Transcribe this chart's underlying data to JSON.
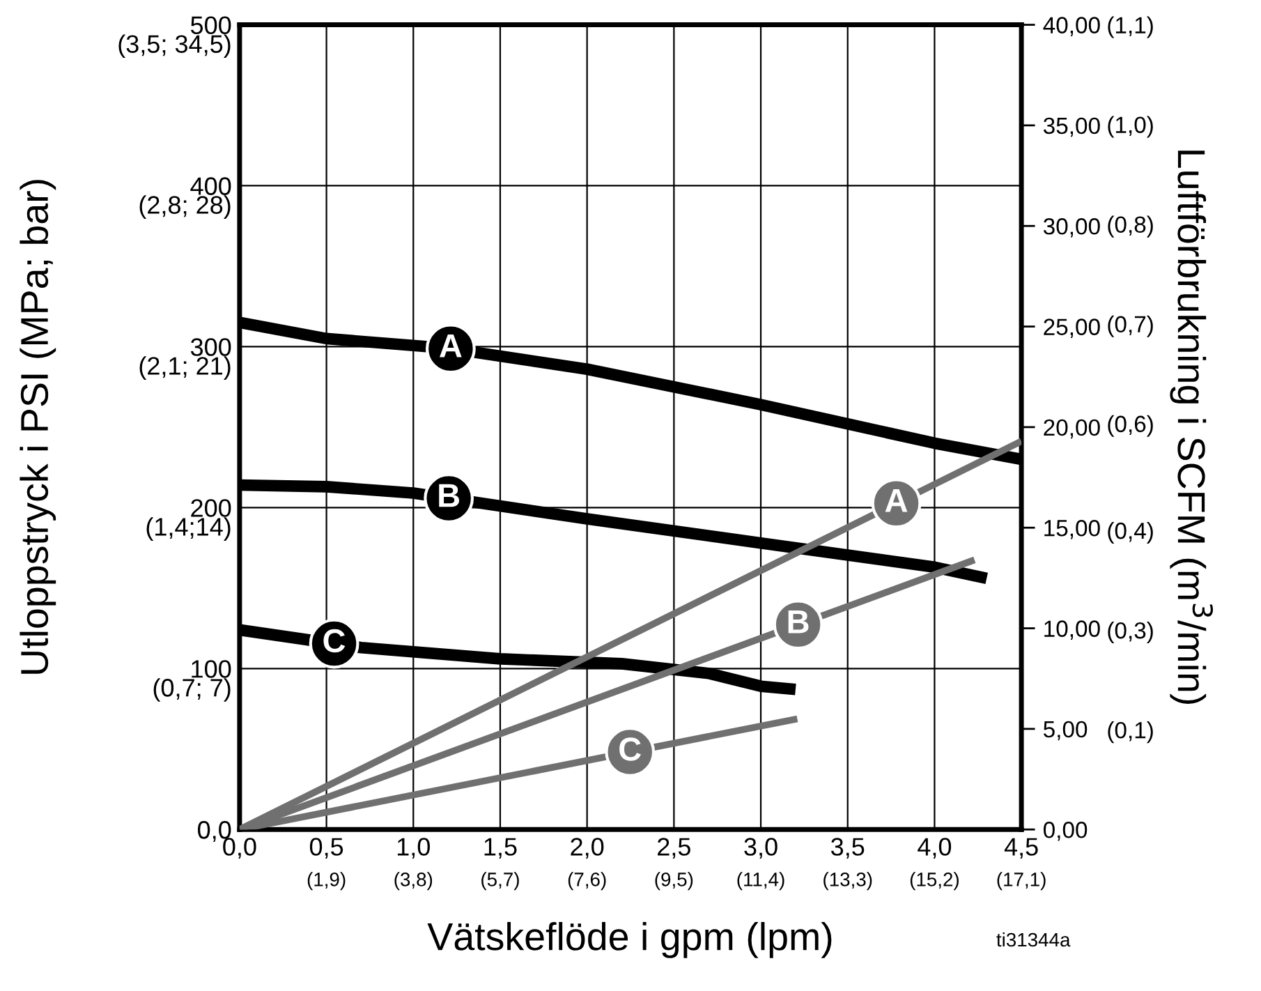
{
  "chart_data": {
    "type": "line",
    "xlabel": "Vätskeflöde i gpm (lpm)",
    "ylabel": "Utloppstryck i PSI (MPa; bar)",
    "y2label": "Luftförbrukning i SCFM (m$^{3}$/min)",
    "xlim": [
      0,
      4.5
    ],
    "ylim": [
      0,
      500
    ],
    "y2lim": [
      0,
      40
    ],
    "xticks": [
      {
        "value": 0,
        "label": "0,0"
      },
      {
        "value": 0.5,
        "label": "0,5"
      },
      {
        "value": 1,
        "label": "1,0"
      },
      {
        "value": 1.5,
        "label": "1,5"
      },
      {
        "value": 2,
        "label": "2,0"
      },
      {
        "value": 2.5,
        "label": "2,5"
      },
      {
        "value": 3,
        "label": "3,0"
      },
      {
        "value": 3.5,
        "label": "3,5"
      },
      {
        "value": 4,
        "label": "4,0"
      },
      {
        "value": 4.5,
        "label": "4,5"
      }
    ],
    "x2lim": [
      0,
      17.1
    ],
    "x2ticks": [
      {
        "value": 1.9,
        "label": "(1,9)"
      },
      {
        "value": 3.8,
        "label": "(3,8)"
      },
      {
        "value": 5.7,
        "label": "(5,7)"
      },
      {
        "value": 7.6,
        "label": "(7,6)"
      },
      {
        "value": 9.5,
        "label": "(9,5)"
      },
      {
        "value": 11.4,
        "label": "(11,4)"
      },
      {
        "value": 13.3,
        "label": "(13,3)"
      },
      {
        "value": 15.2,
        "label": "(15,2)"
      },
      {
        "value": 17.1,
        "label": "(17,1)"
      }
    ],
    "yticks": [
      {
        "value": 0,
        "label": "0,0"
      },
      100,
      200,
      300,
      400,
      500
    ],
    "y2ticks": [
      {
        "value": 0,
        "label": "0,00"
      },
      {
        "value": 5,
        "label": "5,00"
      },
      {
        "value": 10,
        "label": "10,00"
      },
      {
        "value": 15,
        "label": "15,00"
      },
      {
        "value": 20,
        "label": "20,00"
      },
      {
        "value": 25,
        "label": "25,00"
      },
      {
        "value": 30,
        "label": "30,00"
      },
      {
        "value": 35,
        "label": "35,00"
      },
      {
        "value": 40,
        "label": "40,00"
      }
    ],
    "grid": true,
    "legend": false,
    "marker": "none",
    "line_style": "solid",
    "series": [
      {
        "name": "A",
        "color": "#000000",
        "x": [
          0,
          0.5,
          1.2,
          2,
          3,
          4,
          4.5
        ],
        "values": [
          315,
          305,
          299,
          286,
          264,
          240,
          230
        ]
      },
      {
        "name": "B",
        "color": "#000000",
        "x": [
          0,
          0.5,
          1,
          2,
          3,
          4,
          4.3
        ],
        "values": [
          214,
          213,
          209,
          193,
          178,
          163,
          156
        ]
      },
      {
        "name": "C",
        "color": "#000000",
        "x": [
          0,
          0.7,
          1.5,
          2.2,
          2.7,
          3,
          3.2
        ],
        "values": [
          124,
          113,
          106,
          103,
          97,
          89,
          87
        ]
      },
      {
        "name": "A",
        "color": "#707070",
        "axis": "y2",
        "x": [
          0,
          4.5
        ],
        "values": [
          0,
          19.3
        ]
      },
      {
        "name": "B",
        "color": "#707070",
        "axis": "y2",
        "x": [
          0,
          4.23
        ],
        "values": [
          0,
          13.4
        ]
      },
      {
        "name": "C",
        "color": "#707070",
        "axis": "y2",
        "x": [
          0,
          3.21
        ],
        "values": [
          0,
          5.5
        ]
      }
    ],
    "annotations": [
      "(0,7; 7)",
      "(1,4;14)",
      "(2,1; 21)",
      "(2,8; 28)",
      "(3,5; 34,5)",
      "ti31344a"
    ],
    "y3lim": [
      0,
      1.13
    ],
    "y3ticks": [
      {
        "value": 0.14,
        "label": "(0,1)"
      },
      {
        "value": 0.28,
        "label": "(0,3)"
      },
      {
        "value": 0.42,
        "label": "(0,4)"
      },
      {
        "value": 0.57,
        "label": "(0,6)"
      },
      {
        "value": 0.71,
        "label": "(0,7)"
      },
      {
        "value": 0.85,
        "label": "(0,8)"
      },
      {
        "value": 0.99,
        "label": "(1,0)"
      },
      {
        "value": 1.13,
        "label": "(1,1)"
      }
    ]
  }
}
